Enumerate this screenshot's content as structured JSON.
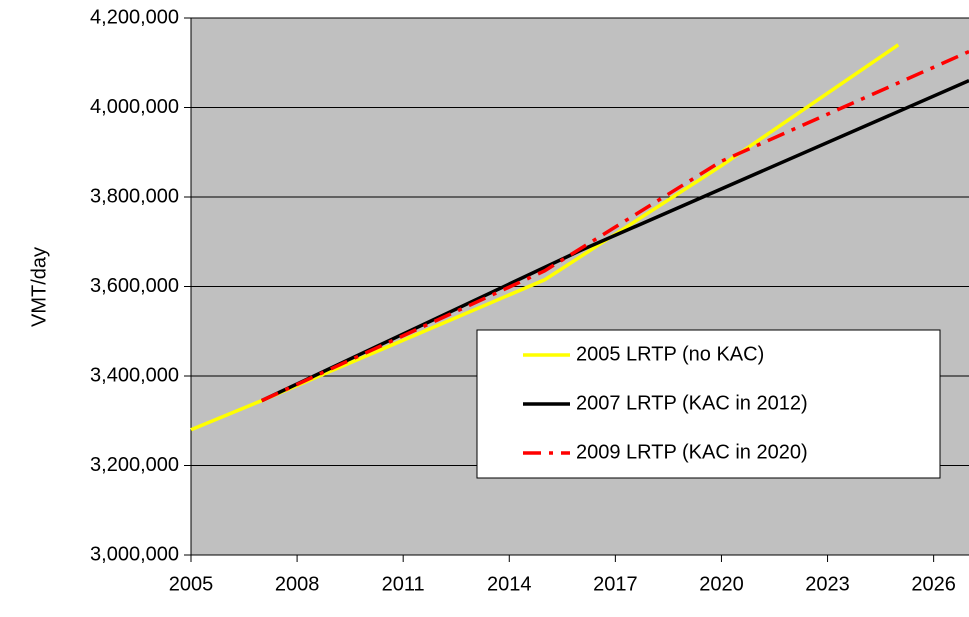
{
  "chart_data": {
    "type": "line",
    "y_label": "VMT/day",
    "series": [
      {
        "name": "2005 LRTP (no KAC)",
        "color": "#ffff00",
        "dash": "solid",
        "x": [
          2005,
          2007,
          2015,
          2020,
          2025
        ],
        "values": [
          3280000,
          3345000,
          3615000,
          3870000,
          4140000
        ]
      },
      {
        "name": "2007 LRTP (KAC in 2012)",
        "color": "#000000",
        "dash": "solid",
        "x": [
          2007,
          2016,
          2027
        ],
        "values": [
          3345000,
          3680000,
          4060000
        ]
      },
      {
        "name": "2009 LRTP (KAC in 2020)",
        "color": "#ff0000",
        "dash": "dashdot",
        "x": [
          2007,
          2015,
          2020,
          2027
        ],
        "values": [
          3345000,
          3635000,
          3880000,
          4125000
        ]
      }
    ],
    "xlim": [
      2005,
      2027
    ],
    "xticks": [
      2005,
      2008,
      2011,
      2014,
      2017,
      2020,
      2023,
      2026
    ],
    "ylim": [
      3000000,
      4200000
    ],
    "yticks": [
      {
        "value": 3000000,
        "label": "3,000,000"
      },
      {
        "value": 3200000,
        "label": "3,200,000"
      },
      {
        "value": 3400000,
        "label": "3,400,000"
      },
      {
        "value": 3600000,
        "label": "3,600,000"
      },
      {
        "value": 3800000,
        "label": "3,800,000"
      },
      {
        "value": 4000000,
        "label": "4,000,000"
      },
      {
        "value": 4200000,
        "label": "4,200,000"
      }
    ],
    "grid": true
  }
}
